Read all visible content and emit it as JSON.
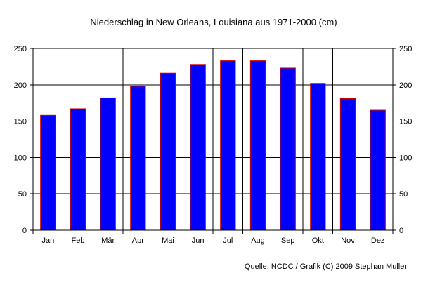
{
  "chart_data": {
    "type": "bar",
    "title": "Niederschlag in New Orleans, Louisiana aus 1971-2000 (cm)",
    "categories": [
      "Jan",
      "Feb",
      "Mär",
      "Apr",
      "Mai",
      "Jun",
      "Jul",
      "Aug",
      "Sep",
      "Okt",
      "Nov",
      "Dez"
    ],
    "values": [
      158,
      167,
      182,
      198,
      216,
      228,
      233,
      233,
      223,
      202,
      181,
      165
    ],
    "ylim": [
      0,
      250
    ],
    "yticks": [
      0,
      50,
      100,
      150,
      200,
      250
    ],
    "ytick_labels": [
      "0",
      "50",
      "100",
      "150",
      "200",
      "250"
    ],
    "grid": true,
    "secondary_y_axis": true,
    "source": "Quelle: NCDC / Grafik (C) 2009 Stephan Muller",
    "colors": {
      "bar_fill": "#0000ff",
      "bar_edge": "#cc0000",
      "grid": "#000000",
      "background": "#ffffff"
    }
  }
}
